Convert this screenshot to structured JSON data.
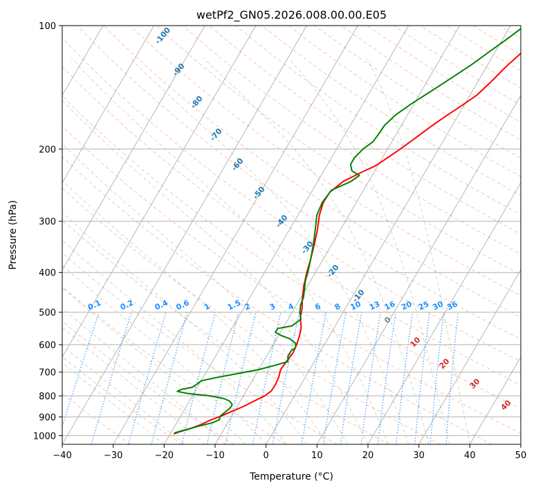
{
  "chart_data": {
    "type": "line",
    "title": "wetPf2_GN05.2026.008.00.00.E05",
    "xlabel": "Temperature (°C)",
    "ylabel": "Pressure (hPa)",
    "xlim": [
      -40,
      50
    ],
    "ylim": [
      1050,
      100
    ],
    "y_scale": "log",
    "x_ticks": [
      -40,
      -30,
      -20,
      -10,
      0,
      10,
      20,
      30,
      40,
      50
    ],
    "x_tick_labels": [
      "−40",
      "−30",
      "−20",
      "−10",
      "0",
      "10",
      "20",
      "30",
      "40",
      "50"
    ],
    "y_ticks": [
      1000,
      900,
      800,
      700,
      600,
      500,
      400,
      300,
      200,
      100
    ],
    "y_tick_labels": [
      "1000",
      "900",
      "800",
      "700",
      "600",
      "500",
      "400",
      "300",
      "200",
      "100"
    ],
    "grid": true,
    "colors": {
      "temperature": "#ff0000",
      "dewpoint": "#008000",
      "dry_adiabats": "#ff8c69",
      "moist_adiabats": "#8fbc8f",
      "mixing_ratio": "#1e90ff",
      "isotherms": "#808080"
    },
    "series": [
      {
        "key": "temperature",
        "points": [
          [
            -19.3,
            990
          ],
          [
            -18.5,
            980
          ],
          [
            -17,
            965
          ],
          [
            -15,
            940
          ],
          [
            -13.8,
            918
          ],
          [
            -12,
            895
          ],
          [
            -10.3,
            870
          ],
          [
            -8.7,
            848
          ],
          [
            -7.2,
            822
          ],
          [
            -5.8,
            800
          ],
          [
            -5.1,
            778
          ],
          [
            -5,
            750
          ],
          [
            -5.2,
            720
          ],
          [
            -5.7,
            690
          ],
          [
            -5.5,
            660
          ],
          [
            -5.2,
            630
          ],
          [
            -5.4,
            600
          ],
          [
            -5.9,
            570
          ],
          [
            -6.5,
            545
          ],
          [
            -7.8,
            515
          ],
          [
            -8.5,
            490
          ],
          [
            -9.7,
            460
          ],
          [
            -10.8,
            430
          ],
          [
            -11.7,
            400
          ],
          [
            -12.5,
            370
          ],
          [
            -13.5,
            340
          ],
          [
            -14.5,
            315
          ],
          [
            -15.8,
            290
          ],
          [
            -16.5,
            270
          ],
          [
            -16.4,
            255
          ],
          [
            -15,
            240
          ],
          [
            -12.5,
            228
          ],
          [
            -10.5,
            220
          ],
          [
            -9,
            210
          ],
          [
            -7.5,
            200
          ],
          [
            -5.8,
            188
          ],
          [
            -4.2,
            177
          ],
          [
            -2.3,
            166
          ],
          [
            -0.5,
            157
          ],
          [
            1.3,
            148
          ],
          [
            2.5,
            138
          ],
          [
            3.8,
            126
          ],
          [
            5,
            118
          ],
          [
            6,
            110
          ],
          [
            7,
            104
          ],
          [
            7.8,
            100
          ]
        ]
      },
      {
        "key": "dewpoint",
        "points": [
          [
            -19.3,
            985
          ],
          [
            -18.3,
            975
          ],
          [
            -17.5,
            968
          ],
          [
            -15.5,
            950
          ],
          [
            -13,
            930
          ],
          [
            -12,
            915
          ],
          [
            -12.2,
            895
          ],
          [
            -11.8,
            880
          ],
          [
            -11.2,
            855
          ],
          [
            -11.2,
            840
          ],
          [
            -12,
            825
          ],
          [
            -13.5,
            812
          ],
          [
            -16.5,
            800
          ],
          [
            -21,
            790
          ],
          [
            -23.5,
            780
          ],
          [
            -23,
            772
          ],
          [
            -21,
            762
          ],
          [
            -20.5,
            750
          ],
          [
            -20,
            735
          ],
          [
            -17,
            720
          ],
          [
            -13.5,
            705
          ],
          [
            -10,
            690
          ],
          [
            -7.5,
            675
          ],
          [
            -5.2,
            660
          ],
          [
            -5.8,
            640
          ],
          [
            -5.8,
            620
          ],
          [
            -5.3,
            610
          ],
          [
            -5.8,
            595
          ],
          [
            -7.5,
            580
          ],
          [
            -9.5,
            570
          ],
          [
            -11,
            560
          ],
          [
            -11,
            548
          ],
          [
            -8.5,
            540
          ],
          [
            -7.5,
            520
          ],
          [
            -8.5,
            500
          ],
          [
            -9.2,
            480
          ],
          [
            -9.5,
            460
          ],
          [
            -10.2,
            440
          ],
          [
            -11,
            420
          ],
          [
            -11.5,
            400
          ],
          [
            -12.5,
            370
          ],
          [
            -13.7,
            340
          ],
          [
            -15.2,
            310
          ],
          [
            -16.3,
            290
          ],
          [
            -16.7,
            270
          ],
          [
            -16.3,
            252
          ],
          [
            -13.5,
            240
          ],
          [
            -12.5,
            232
          ],
          [
            -14.5,
            226
          ],
          [
            -15.5,
            218
          ],
          [
            -15.5,
            210
          ],
          [
            -14.8,
            200
          ],
          [
            -13.7,
            192
          ],
          [
            -13.5,
            185
          ],
          [
            -13.3,
            175
          ],
          [
            -12.3,
            165
          ],
          [
            -10.5,
            155
          ],
          [
            -8.2,
            145
          ],
          [
            -5.8,
            135
          ],
          [
            -3.3,
            125
          ],
          [
            -1,
            115
          ],
          [
            0.8,
            108
          ],
          [
            2.3,
            102
          ],
          [
            3,
            100
          ]
        ]
      }
    ],
    "mixing_ratio_labels": [
      "0.1",
      "0.2",
      "0.4",
      "0.6",
      "1",
      "1.5",
      "2",
      "3",
      "4",
      "6",
      "8",
      "10",
      "13",
      "16",
      "20",
      "25",
      "30",
      "36"
    ],
    "dry_adiabat_labels": [
      "-100",
      "-90",
      "-80",
      "-70",
      "-60",
      "-50",
      "-40",
      "-30",
      "-20",
      "-10"
    ],
    "moist_adiabat_labels": [
      "0",
      "10",
      "20",
      "30",
      "40"
    ]
  }
}
